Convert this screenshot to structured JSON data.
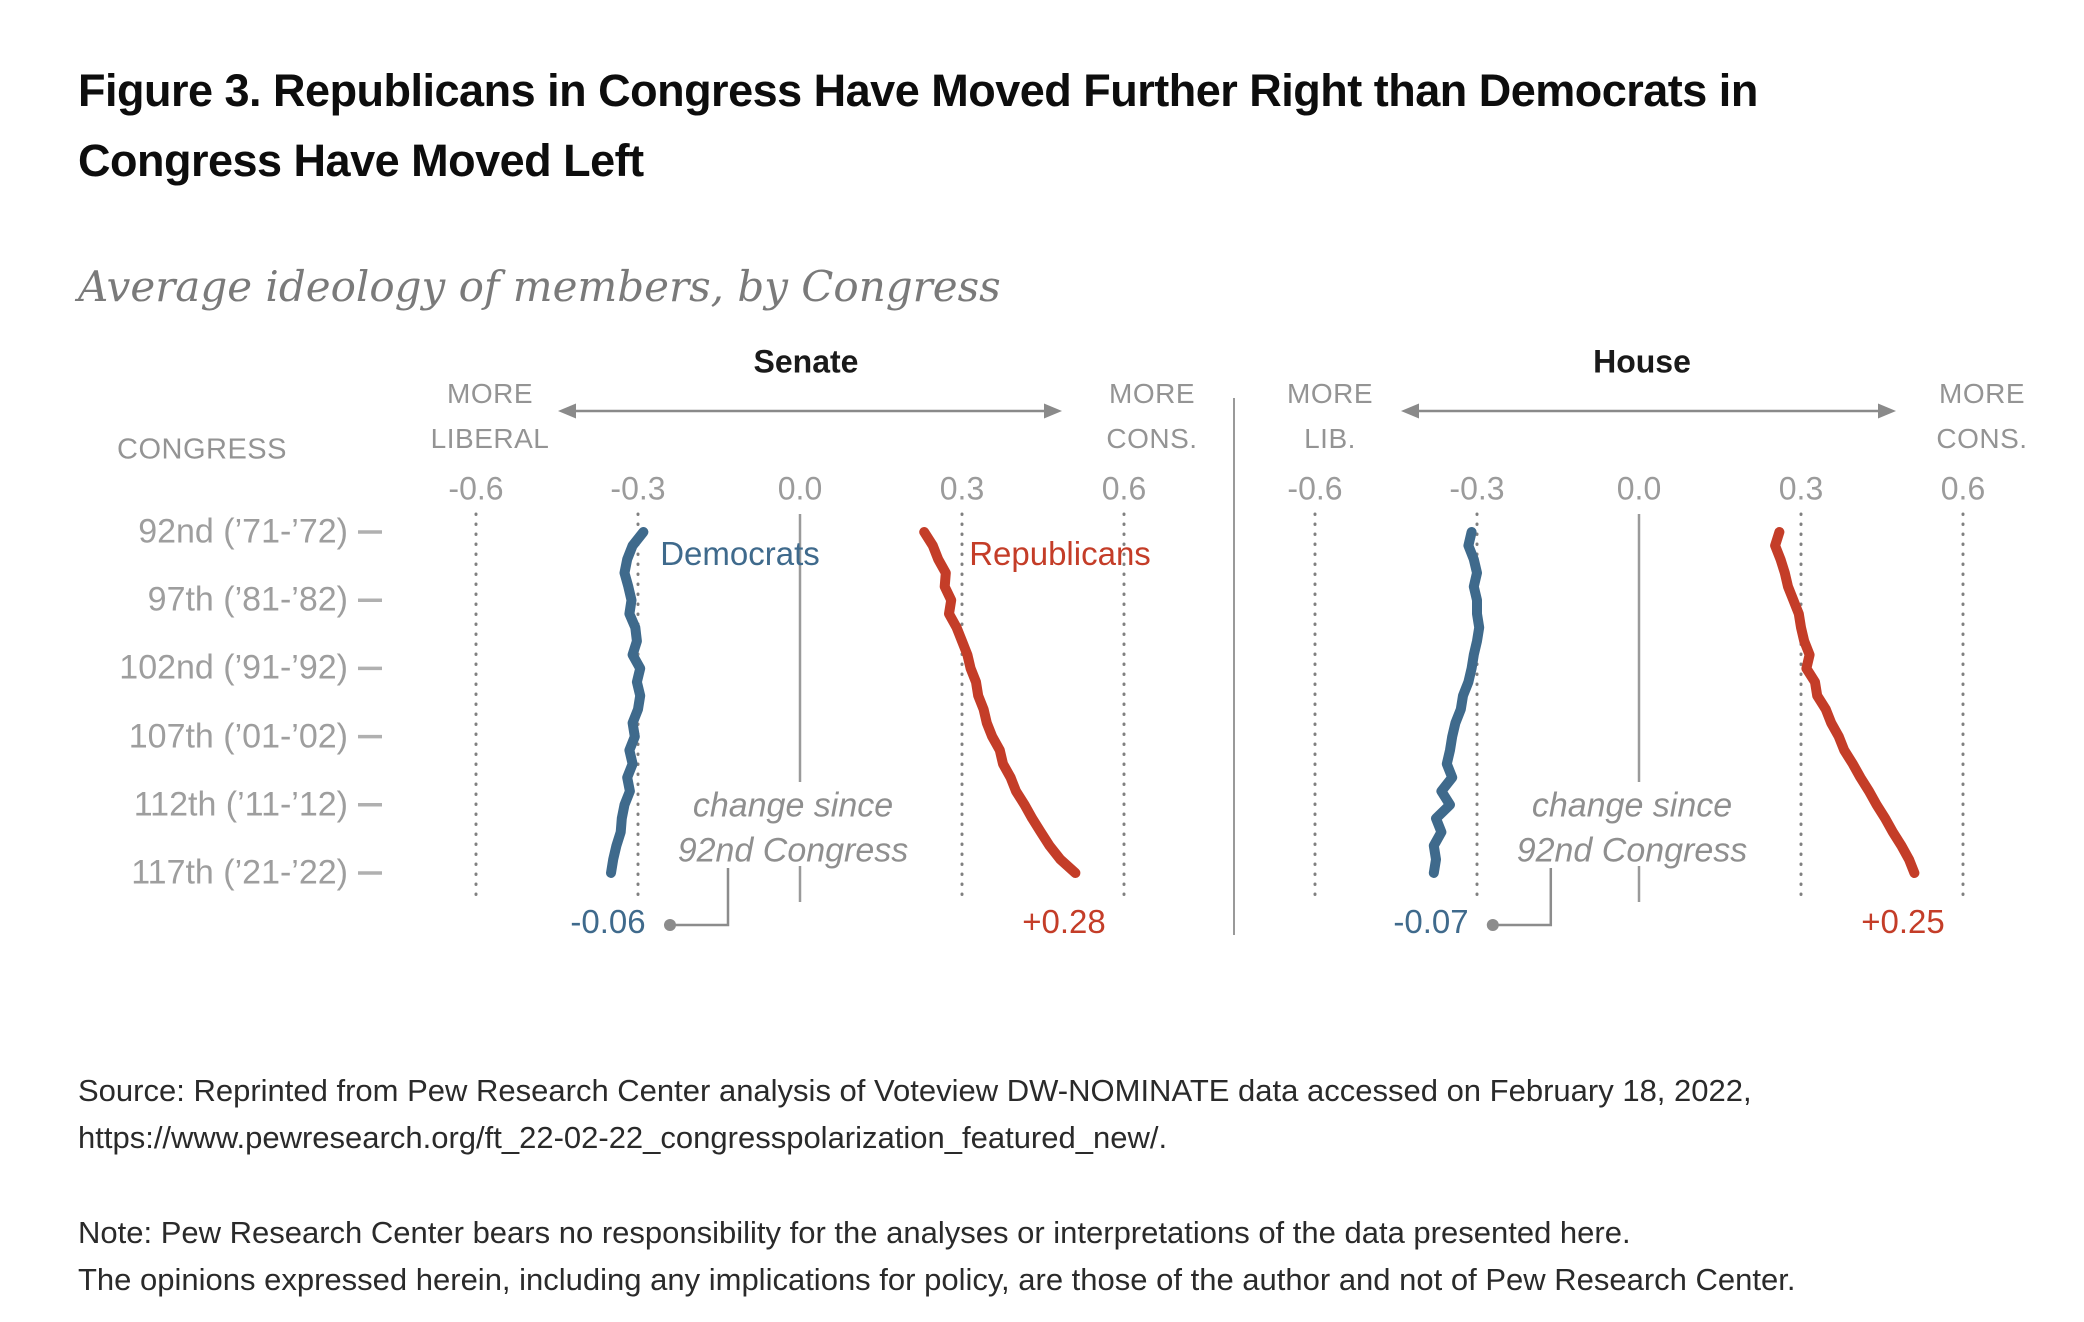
{
  "figure": {
    "title": "Figure 3. Republicans in Congress Have Moved Further Right than Democrats in Congress Have Moved Left",
    "subtitle": "Average ideology of members, by Congress"
  },
  "chart_data": {
    "type": "line",
    "congress_header": "CONGRESS",
    "congresses": [
      92,
      93,
      94,
      95,
      96,
      97,
      98,
      99,
      100,
      101,
      102,
      103,
      104,
      105,
      106,
      107,
      108,
      109,
      110,
      111,
      112,
      113,
      114,
      115,
      116,
      117
    ],
    "congress_ticks": [
      {
        "congress": 92,
        "label": "92nd (’71-’72)"
      },
      {
        "congress": 97,
        "label": "97th (’81-’82)"
      },
      {
        "congress": 102,
        "label": "102nd (’91-’92)"
      },
      {
        "congress": 107,
        "label": "107th (’01-’02)"
      },
      {
        "congress": 112,
        "label": "112th (’11-’12)"
      },
      {
        "congress": 117,
        "label": "117th (’21-’22)"
      }
    ],
    "value_axis": {
      "ticks": [
        -0.6,
        -0.3,
        0.0,
        0.3,
        0.6
      ],
      "tick_labels": [
        "-0.6",
        "-0.3",
        "0.0",
        "0.3",
        "0.6"
      ],
      "range": [
        -0.75,
        0.75
      ]
    },
    "panels": [
      {
        "title": "Senate",
        "left_direction_label": [
          "MORE",
          "LIBERAL"
        ],
        "right_direction_label": [
          "MORE",
          "CONS."
        ],
        "annotation": [
          "change since",
          "92nd Congress"
        ],
        "series": [
          {
            "name": "Democrats",
            "color": "#3f6a8c",
            "change_label": "-0.06",
            "values": [
              -0.29,
              -0.31,
              -0.32,
              -0.325,
              -0.318,
              -0.312,
              -0.316,
              -0.305,
              -0.302,
              -0.31,
              -0.296,
              -0.302,
              -0.296,
              -0.3,
              -0.31,
              -0.306,
              -0.316,
              -0.31,
              -0.32,
              -0.315,
              -0.325,
              -0.33,
              -0.332,
              -0.34,
              -0.346,
              -0.35
            ]
          },
          {
            "name": "Republicans",
            "color": "#c43d28",
            "change_label": "+0.28",
            "values": [
              0.23,
              0.246,
              0.256,
              0.27,
              0.268,
              0.28,
              0.276,
              0.29,
              0.3,
              0.31,
              0.316,
              0.326,
              0.33,
              0.34,
              0.346,
              0.356,
              0.37,
              0.376,
              0.39,
              0.4,
              0.416,
              0.43,
              0.446,
              0.462,
              0.482,
              0.51
            ]
          }
        ]
      },
      {
        "title": "House",
        "left_direction_label": [
          "MORE",
          "LIB."
        ],
        "right_direction_label": [
          "MORE",
          "CONS."
        ],
        "annotation": [
          "change since",
          "92nd Congress"
        ],
        "series": [
          {
            "name": "Democrats",
            "color": "#3f6a8c",
            "change_label": "-0.07",
            "values": [
              -0.31,
              -0.316,
              -0.306,
              -0.3,
              -0.306,
              -0.3,
              -0.3,
              -0.296,
              -0.3,
              -0.306,
              -0.31,
              -0.316,
              -0.326,
              -0.33,
              -0.34,
              -0.346,
              -0.35,
              -0.356,
              -0.346,
              -0.366,
              -0.35,
              -0.376,
              -0.366,
              -0.38,
              -0.376,
              -0.38
            ]
          },
          {
            "name": "Republicans",
            "color": "#c43d28",
            "change_label": "+0.25",
            "values": [
              0.26,
              0.252,
              0.262,
              0.27,
              0.276,
              0.286,
              0.296,
              0.3,
              0.306,
              0.316,
              0.31,
              0.326,
              0.33,
              0.346,
              0.356,
              0.37,
              0.38,
              0.396,
              0.41,
              0.426,
              0.44,
              0.456,
              0.47,
              0.486,
              0.5,
              0.51
            ]
          }
        ]
      }
    ]
  },
  "colors": {
    "democrat": "#3f6a8c",
    "republican": "#c43d28",
    "grid_gray": "#808080",
    "axis_text_gray": "#9b9b9b",
    "annotation_gray": "#8f8f8f"
  },
  "source": {
    "line1": "Source: Reprinted from Pew Research Center analysis of Voteview DW-NOMINATE data accessed on February 18, 2022,",
    "line2": "https://www.pewresearch.org/ft_22-02-22_congresspolarization_featured_new/."
  },
  "note": {
    "line1": "Note: Pew Research Center bears no responsibility for the analyses or interpretations of the data presented here.",
    "line2": "The opinions expressed herein, including any implications for policy, are those of the author and not of Pew Research Center."
  }
}
